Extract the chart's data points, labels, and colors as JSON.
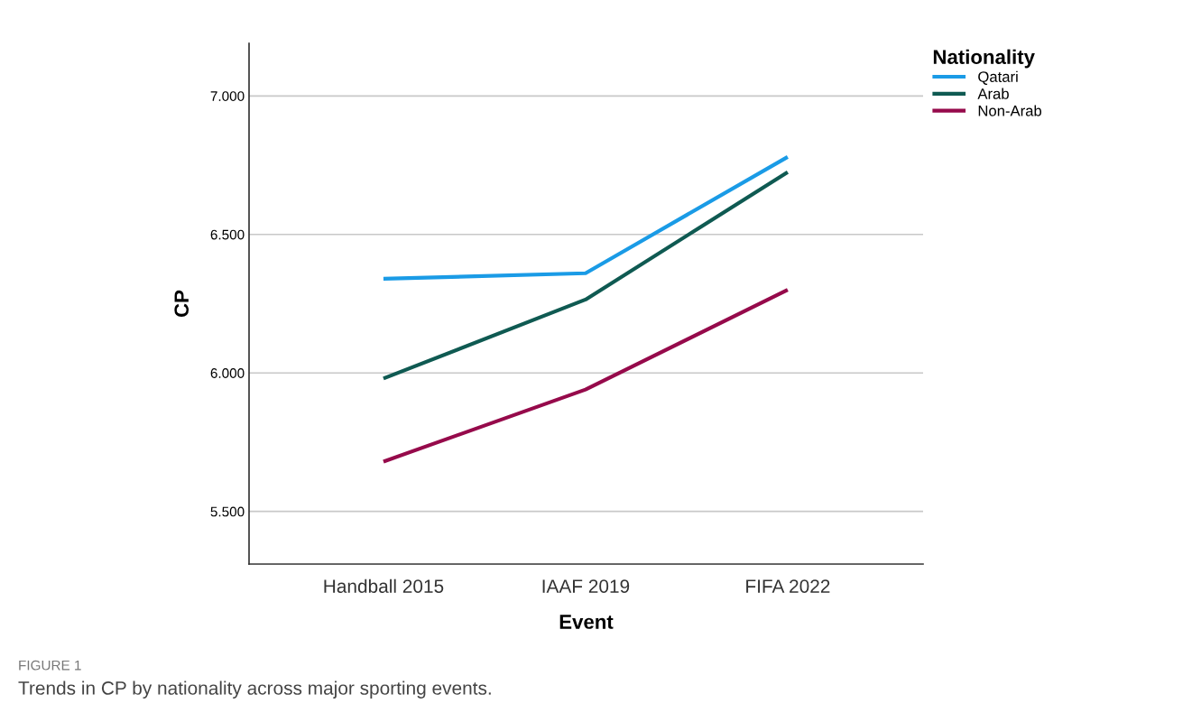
{
  "chart_data": {
    "type": "line",
    "xlabel": "Event",
    "ylabel": "CP",
    "legend_title": "Nationality",
    "categories": [
      "Handball 2015",
      "IAAF 2019",
      "FIFA 2022"
    ],
    "series": [
      {
        "name": "Qatari",
        "color": "#1a9be6",
        "values": [
          6.34,
          6.36,
          6.78
        ]
      },
      {
        "name": "Arab",
        "color": "#0f5a52",
        "values": [
          5.98,
          6.265,
          6.725
        ]
      },
      {
        "name": "Non-Arab",
        "color": "#960a4b",
        "values": [
          5.68,
          5.94,
          6.3
        ]
      }
    ],
    "ylim": [
      5.31,
      7.19
    ],
    "yticks": [
      {
        "value": 5.5,
        "label": "5.500"
      },
      {
        "value": 6.0,
        "label": "6.000"
      },
      {
        "value": 6.5,
        "label": "6.500"
      },
      {
        "value": 7.0,
        "label": "7.000"
      }
    ],
    "grid": "y",
    "legend": "top right",
    "marker": "none",
    "line_style": "solid",
    "annotations": [
      "FIGURE 1",
      "Trends in CP by nationality across major sporting events."
    ]
  }
}
